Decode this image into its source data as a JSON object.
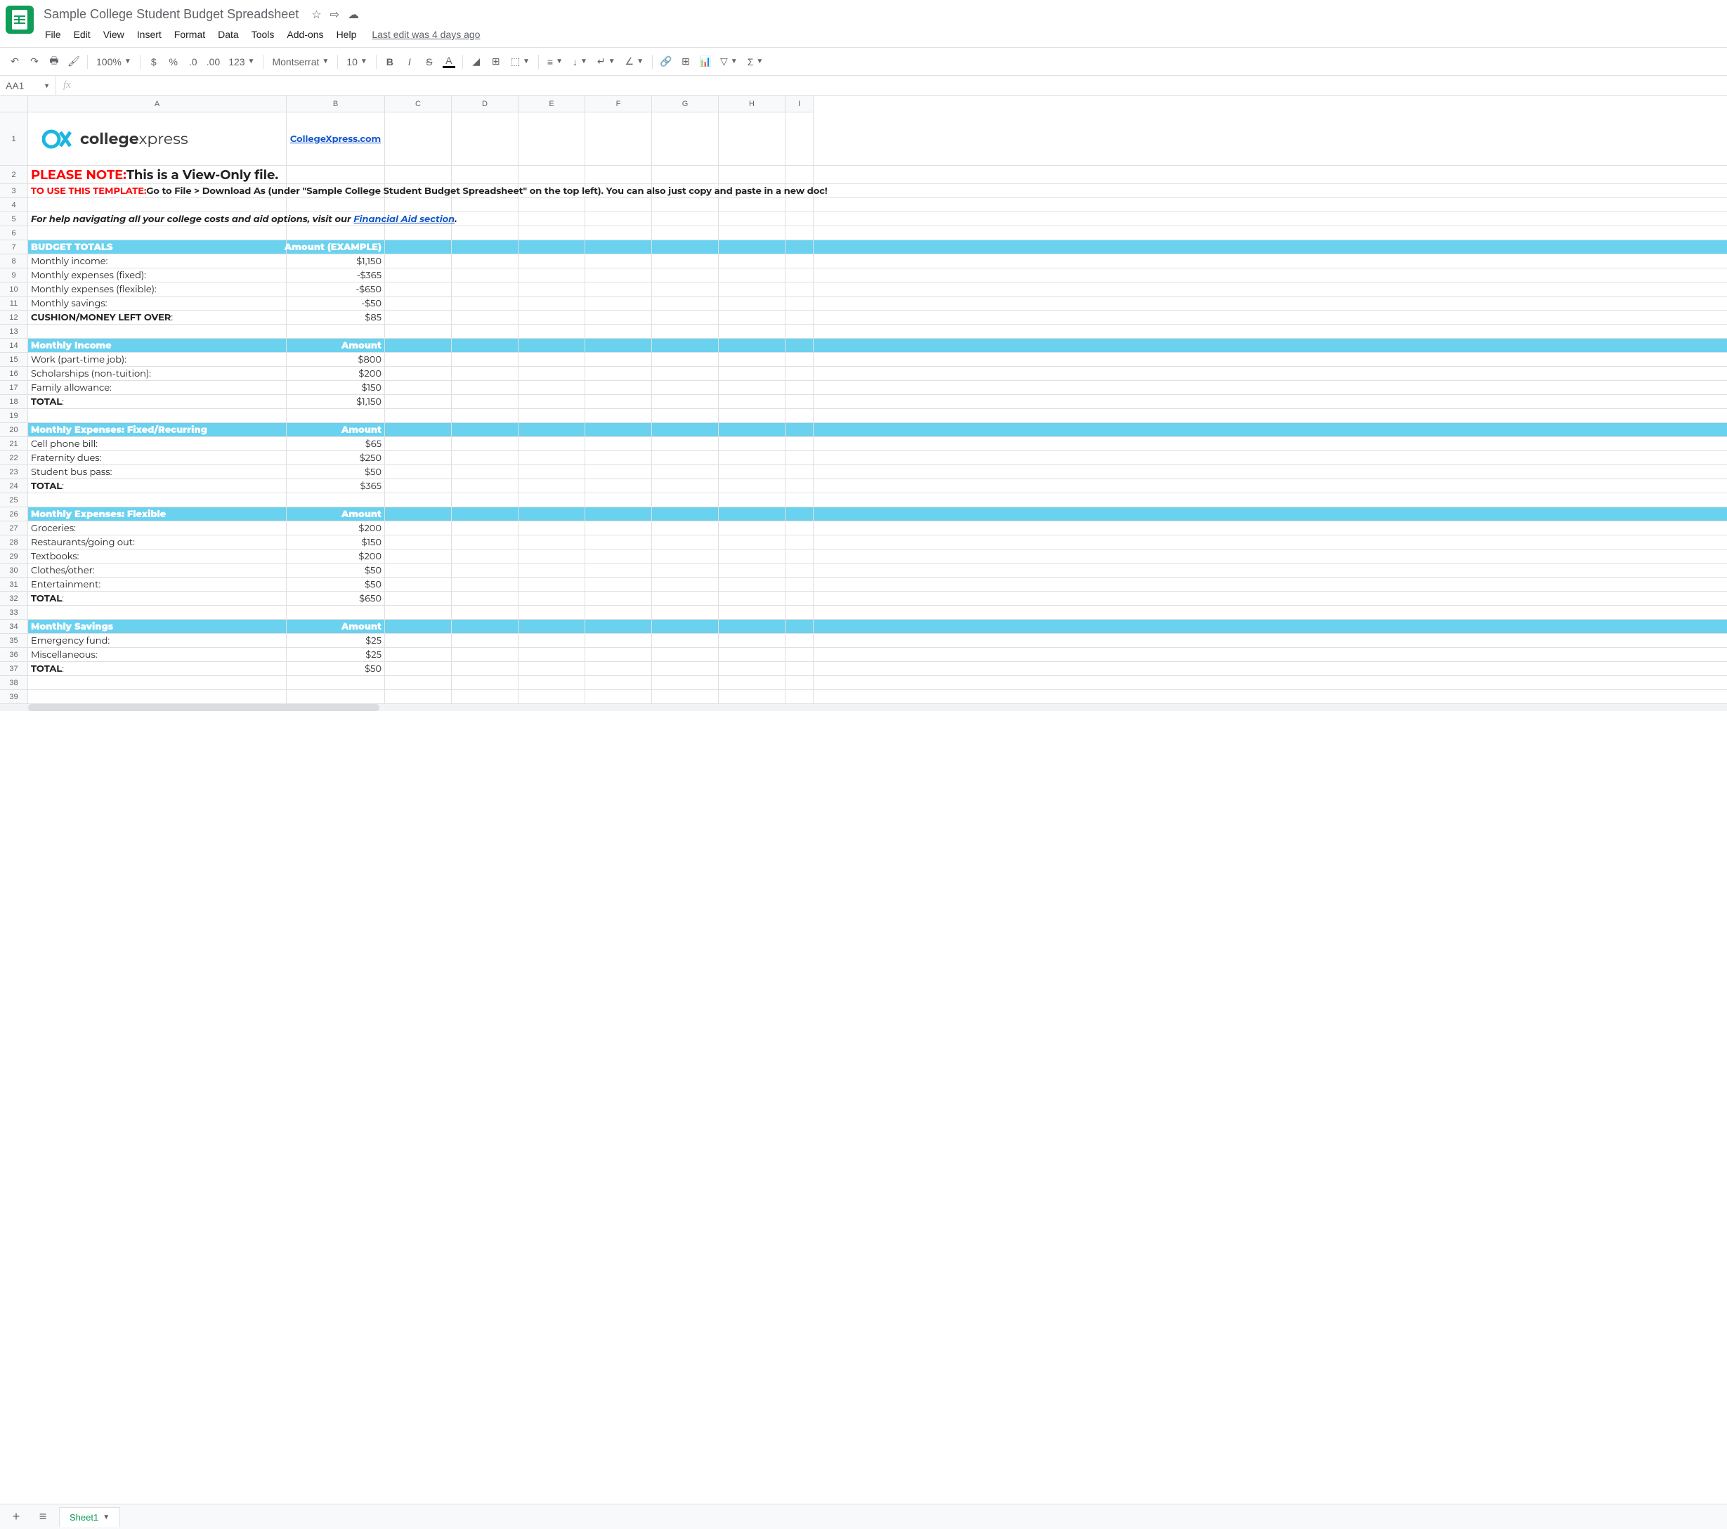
{
  "doc": {
    "title": "Sample College Student Budget Spreadsheet",
    "last_edit": "Last edit was 4 days ago"
  },
  "menus": [
    "File",
    "Edit",
    "View",
    "Insert",
    "Format",
    "Data",
    "Tools",
    "Add-ons",
    "Help"
  ],
  "toolbar": {
    "zoom": "100%",
    "font": "Montserrat",
    "fontsize": "10"
  },
  "name_box": "AA1",
  "columns": [
    "A",
    "B",
    "C",
    "D",
    "E",
    "F",
    "G",
    "H",
    "I"
  ],
  "col_widths": {
    "A": 368,
    "B": 140,
    "C": 95,
    "D": 95,
    "E": 95,
    "F": 95,
    "G": 95,
    "H": 95,
    "I": 40
  },
  "row_defs": [
    {
      "n": 1,
      "h": 76
    },
    {
      "n": 2,
      "h": 26
    },
    {
      "n": 3,
      "h": 20
    },
    {
      "n": 4,
      "h": 20
    },
    {
      "n": 5,
      "h": 20
    },
    {
      "n": 6,
      "h": 20
    },
    {
      "n": 7,
      "h": 20
    },
    {
      "n": 8,
      "h": 20
    },
    {
      "n": 9,
      "h": 20
    },
    {
      "n": 10,
      "h": 20
    },
    {
      "n": 11,
      "h": 20
    },
    {
      "n": 12,
      "h": 20
    },
    {
      "n": 13,
      "h": 20
    },
    {
      "n": 14,
      "h": 20
    },
    {
      "n": 15,
      "h": 20
    },
    {
      "n": 16,
      "h": 20
    },
    {
      "n": 17,
      "h": 20
    },
    {
      "n": 18,
      "h": 20
    },
    {
      "n": 19,
      "h": 20
    },
    {
      "n": 20,
      "h": 20
    },
    {
      "n": 21,
      "h": 20
    },
    {
      "n": 22,
      "h": 20
    },
    {
      "n": 23,
      "h": 20
    },
    {
      "n": 24,
      "h": 20
    },
    {
      "n": 25,
      "h": 20
    },
    {
      "n": 26,
      "h": 20
    },
    {
      "n": 27,
      "h": 20
    },
    {
      "n": 28,
      "h": 20
    },
    {
      "n": 29,
      "h": 20
    },
    {
      "n": 30,
      "h": 20
    },
    {
      "n": 31,
      "h": 20
    },
    {
      "n": 32,
      "h": 20
    },
    {
      "n": 33,
      "h": 20
    },
    {
      "n": 34,
      "h": 20
    },
    {
      "n": 35,
      "h": 20
    },
    {
      "n": 36,
      "h": 20
    },
    {
      "n": 37,
      "h": 20
    },
    {
      "n": 38,
      "h": 20
    },
    {
      "n": 39,
      "h": 20
    }
  ],
  "content": {
    "logo_brand_prefix": "college",
    "logo_brand_suffix": "xpress",
    "site_link": "CollegeXpress.com",
    "note_label": "PLEASE NOTE:",
    "note_text": "This is a View-Only file.",
    "instr_label": "TO USE THIS TEMPLATE:",
    "instr_text": "Go to File > Download As (under \"Sample College Student Budget Spreadsheet\" on the top left). You can also just copy and paste in a new doc!",
    "help_prefix": "For help navigating all your college costs and aid options, visit our ",
    "help_link": "Financial Aid section",
    "help_suffix": "."
  },
  "sections": {
    "totals": {
      "header_a": "BUDGET TOTALS",
      "header_b": "Amount (EXAMPLE)",
      "rows": [
        {
          "label": "Monthly income:",
          "amount": "$1,150"
        },
        {
          "label": "Monthly expenses (fixed):",
          "amount": "-$365"
        },
        {
          "label": "Monthly expenses (flexible):",
          "amount": "-$650"
        },
        {
          "label": "Monthly savings:",
          "amount": "-$50"
        }
      ],
      "total_label": "CUSHION/MONEY LEFT OVER",
      "total_suffix": ":",
      "total_amount": "$85"
    },
    "income": {
      "header_a": "Monthly Income",
      "header_b": "Amount",
      "rows": [
        {
          "label": "Work (part-time job):",
          "amount": "$800"
        },
        {
          "label": "Scholarships (non-tuition):",
          "amount": "$200"
        },
        {
          "label": "Family allowance:",
          "amount": "$150"
        }
      ],
      "total_label": "TOTAL",
      "total_suffix": ":",
      "total_amount": "$1,150"
    },
    "fixed": {
      "header_a": "Monthly Expenses: Fixed/Recurring",
      "header_b": "Amount",
      "rows": [
        {
          "label": "Cell phone bill:",
          "amount": "$65"
        },
        {
          "label": "Fraternity dues:",
          "amount": "$250"
        },
        {
          "label": "Student bus pass:",
          "amount": "$50"
        }
      ],
      "total_label": "TOTAL",
      "total_suffix": ":",
      "total_amount": "$365"
    },
    "flexible": {
      "header_a": "Monthly Expenses: Flexible",
      "header_b": "Amount",
      "rows": [
        {
          "label": "Groceries:",
          "amount": "$200"
        },
        {
          "label": "Restaurants/going out:",
          "amount": "$150"
        },
        {
          "label": "Textbooks:",
          "amount": "$200"
        },
        {
          "label": "Clothes/other:",
          "amount": "$50"
        },
        {
          "label": "Entertainment:",
          "amount": "$50"
        }
      ],
      "total_label": "TOTAL",
      "total_suffix": ":",
      "total_amount": "$650"
    },
    "savings": {
      "header_a": "Monthly Savings",
      "header_b": "Amount",
      "rows": [
        {
          "label": "Emergency fund:",
          "amount": "$25"
        },
        {
          "label": "Miscellaneous:",
          "amount": "$25"
        }
      ],
      "total_label": "TOTAL",
      "total_suffix": ":",
      "total_amount": "$50"
    }
  },
  "sheet_tab": "Sheet1",
  "colors": {
    "section_bg": "#6ad1ef",
    "link": "#1155cc",
    "red": "#ff0000",
    "green": "#0f9d58",
    "logo_cyan": "#1cb6e0"
  }
}
